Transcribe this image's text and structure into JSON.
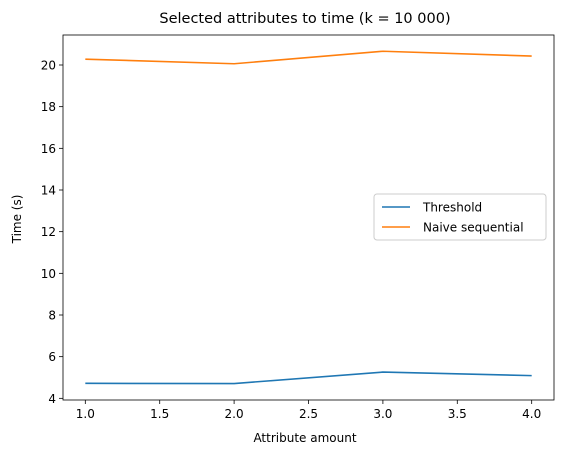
{
  "chart_data": {
    "type": "line",
    "title": "Selected attributes to time (k = 10 000)",
    "xlabel": "Attribute amount",
    "ylabel": "Time (s)",
    "x": [
      1.0,
      2.0,
      3.0,
      4.0
    ],
    "series": [
      {
        "name": "Threshold",
        "color": "#1f77b4",
        "values": [
          4.72,
          4.71,
          5.26,
          5.09
        ]
      },
      {
        "name": "Naive sequential",
        "color": "#ff7f0e",
        "values": [
          20.28,
          20.06,
          20.66,
          20.43
        ]
      }
    ],
    "xlim": [
      0.85,
      4.15
    ],
    "ylim": [
      3.92,
      21.44
    ],
    "xticks": [
      "1.0",
      "1.5",
      "2.0",
      "2.5",
      "3.0",
      "3.5",
      "4.0"
    ],
    "yticks": [
      "4",
      "6",
      "8",
      "10",
      "12",
      "14",
      "16",
      "18",
      "20"
    ],
    "grid": false,
    "legend_position": "center-right"
  }
}
